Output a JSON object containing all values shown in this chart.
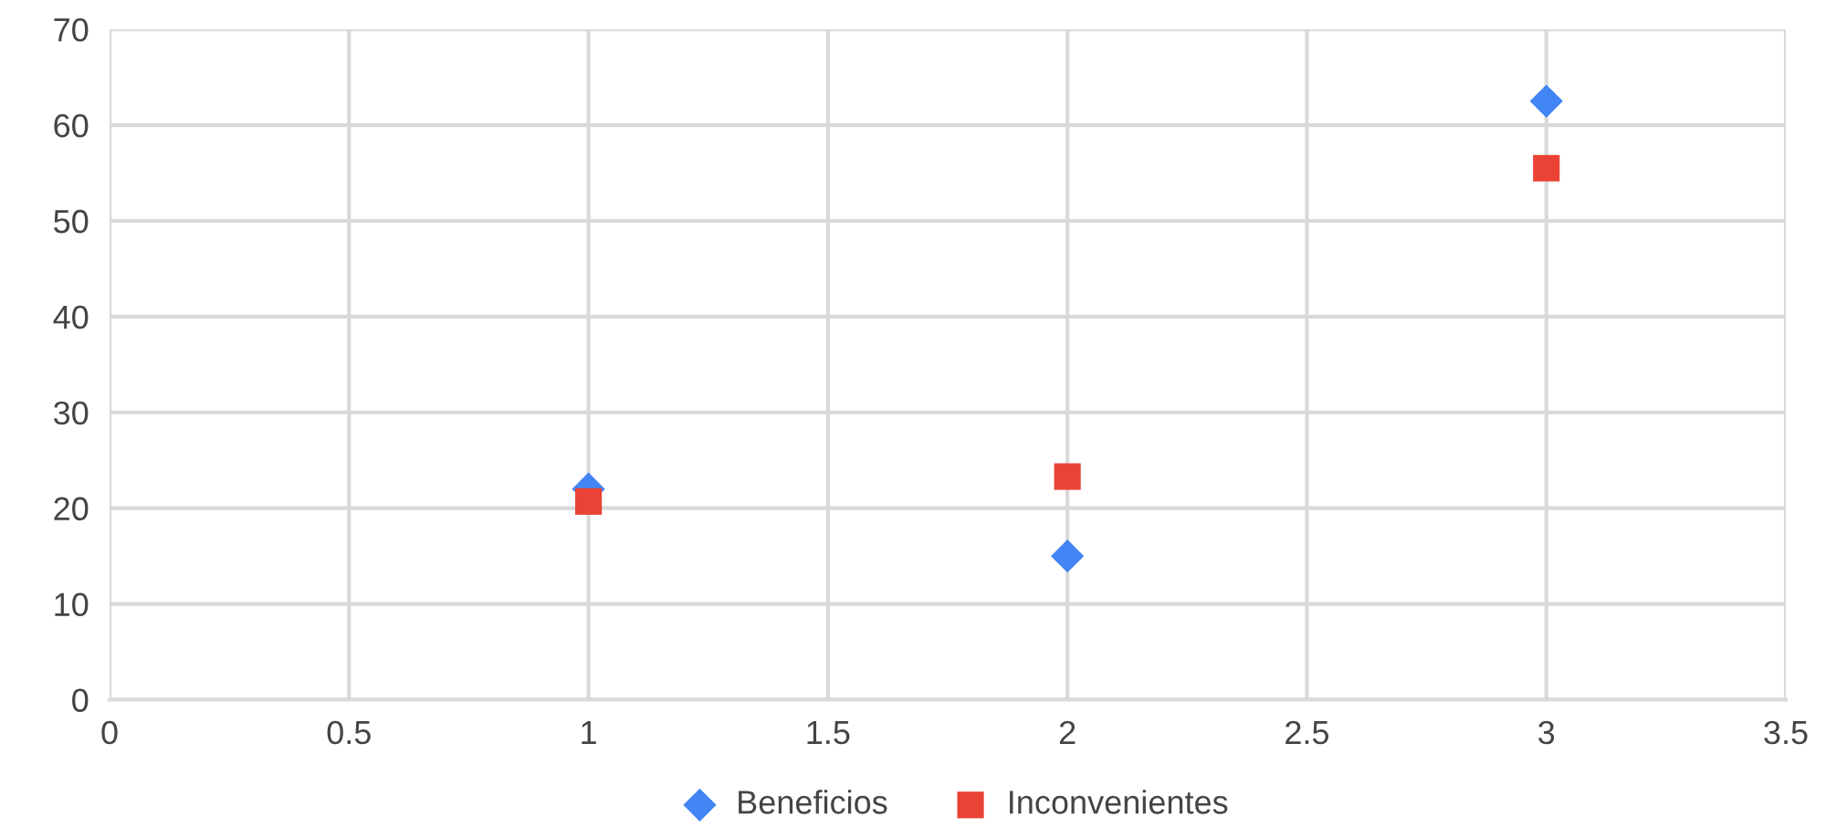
{
  "chart_data": {
    "type": "scatter",
    "x": [
      1,
      2,
      3
    ],
    "series": [
      {
        "name": "Beneficios",
        "color": "#4285f4",
        "values": [
          22,
          15,
          62.5
        ],
        "marker": "diamond"
      },
      {
        "name": "Inconvenientes",
        "color": "#ea4335",
        "values": [
          20.7,
          23.3,
          55.5
        ],
        "marker": "square"
      }
    ],
    "xlim": [
      0,
      3.5
    ],
    "xticks": [
      0,
      0.5,
      1,
      1.5,
      2,
      2.5,
      3,
      3.5
    ],
    "ylim": [
      0,
      70
    ],
    "yticks": [
      0,
      10,
      20,
      30,
      40,
      50,
      60,
      70
    ],
    "grid": true,
    "legend": "bottom"
  }
}
